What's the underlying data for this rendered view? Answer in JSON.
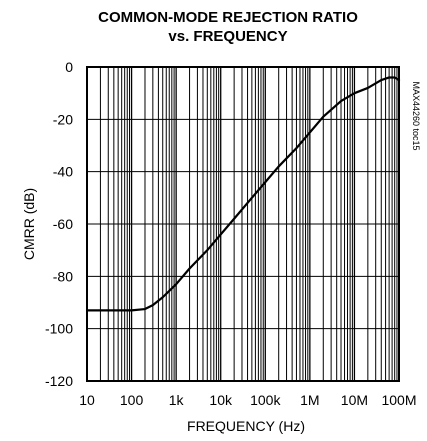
{
  "chart_data": {
    "type": "line",
    "title": "COMMON-MODE REJECTION RATIO",
    "subtitle": "vs. FREQUENCY",
    "xlabel": "FREQUENCY (Hz)",
    "ylabel": "CMRR (dB)",
    "x_scale": "log",
    "xlim": [
      10,
      100000000
    ],
    "ylim": [
      -120,
      0
    ],
    "x_ticks": [
      10,
      100,
      1000,
      10000,
      100000,
      1000000,
      10000000,
      100000000
    ],
    "x_tick_labels": [
      "10",
      "100",
      "1k",
      "10k",
      "100k",
      "1M",
      "10M",
      "100M"
    ],
    "y_ticks": [
      0,
      -20,
      -40,
      -60,
      -80,
      -100,
      -120
    ],
    "y_tick_labels": [
      "0",
      "-20",
      "-40",
      "-60",
      "-80",
      "-100",
      "-120"
    ],
    "grid": true,
    "annotation": "MAX44260 toc15",
    "series": [
      {
        "x": [
          10,
          30,
          100,
          200,
          300,
          500,
          1000,
          2000,
          5000,
          10000,
          20000,
          50000,
          100000,
          200000,
          500000,
          1000000,
          2000000,
          5000000,
          10000000,
          20000000,
          40000000,
          60000000,
          80000000,
          100000000
        ],
        "y": [
          -93,
          -93,
          -93,
          -92.5,
          -91,
          -88,
          -83,
          -77,
          -70,
          -64,
          -58,
          -50,
          -44,
          -38,
          -31,
          -25,
          -19,
          -13,
          -10,
          -8,
          -5,
          -4,
          -4,
          -5
        ]
      }
    ]
  }
}
